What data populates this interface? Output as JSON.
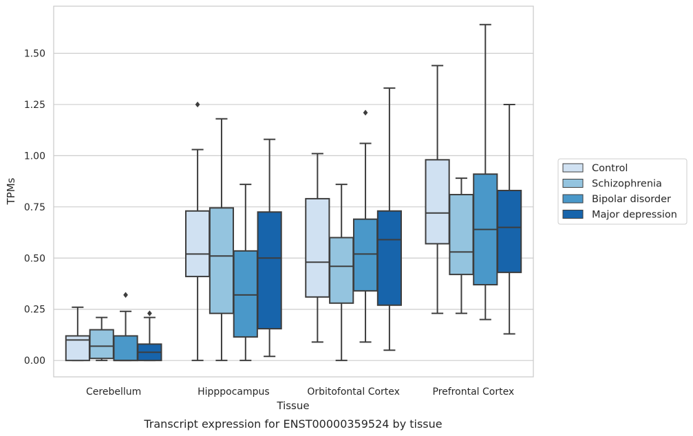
{
  "chart_data": {
    "type": "boxplot",
    "title": "",
    "xlabel": "Tissue",
    "ylabel": "TPMs",
    "caption": "Transcript expression for ENST00000359524 by tissue",
    "ylim": [
      -0.08,
      1.73
    ],
    "yticks": [
      "0.00",
      "0.25",
      "0.50",
      "0.75",
      "1.00",
      "1.25",
      "1.50"
    ],
    "categories": [
      "Cerebellum",
      "Hipppocampus",
      "Orbitofontal Cortex",
      "Prefrontal Cortex"
    ],
    "grid": "horizontal",
    "legend_position": "right",
    "series": [
      {
        "name": "Control",
        "color": "#d0e1f2",
        "boxes": [
          {
            "whislo": 0.0,
            "q1": 0.0,
            "med": 0.1,
            "q3": 0.12,
            "whishi": 0.26,
            "fliers": []
          },
          {
            "whislo": 0.0,
            "q1": 0.41,
            "med": 0.52,
            "q3": 0.73,
            "whishi": 1.03,
            "fliers": [
              1.25
            ]
          },
          {
            "whislo": 0.09,
            "q1": 0.31,
            "med": 0.48,
            "q3": 0.79,
            "whishi": 1.01,
            "fliers": []
          },
          {
            "whislo": 0.23,
            "q1": 0.57,
            "med": 0.72,
            "q3": 0.98,
            "whishi": 1.44,
            "fliers": []
          }
        ]
      },
      {
        "name": "Schizophrenia",
        "color": "#94c4df",
        "boxes": [
          {
            "whislo": 0.0,
            "q1": 0.01,
            "med": 0.07,
            "q3": 0.15,
            "whishi": 0.21,
            "fliers": []
          },
          {
            "whislo": 0.0,
            "q1": 0.23,
            "med": 0.51,
            "q3": 0.745,
            "whishi": 1.18,
            "fliers": []
          },
          {
            "whislo": 0.0,
            "q1": 0.28,
            "med": 0.46,
            "q3": 0.6,
            "whishi": 0.86,
            "fliers": []
          },
          {
            "whislo": 0.23,
            "q1": 0.42,
            "med": 0.53,
            "q3": 0.81,
            "whishi": 0.89,
            "fliers": []
          }
        ]
      },
      {
        "name": "Bipolar disorder",
        "color": "#4a98c9",
        "boxes": [
          {
            "whislo": 0.0,
            "q1": 0.0,
            "med": 0.0,
            "q3": 0.12,
            "whishi": 0.24,
            "fliers": [
              0.32
            ]
          },
          {
            "whislo": 0.0,
            "q1": 0.115,
            "med": 0.32,
            "q3": 0.535,
            "whishi": 0.86,
            "fliers": []
          },
          {
            "whislo": 0.09,
            "q1": 0.34,
            "med": 0.52,
            "q3": 0.69,
            "whishi": 1.06,
            "fliers": [
              1.21
            ]
          },
          {
            "whislo": 0.2,
            "q1": 0.37,
            "med": 0.64,
            "q3": 0.91,
            "whishi": 1.64,
            "fliers": []
          }
        ]
      },
      {
        "name": "Major depression",
        "color": "#1764ab",
        "boxes": [
          {
            "whislo": 0.0,
            "q1": 0.0,
            "med": 0.04,
            "q3": 0.08,
            "whishi": 0.21,
            "fliers": [
              0.23
            ]
          },
          {
            "whislo": 0.02,
            "q1": 0.155,
            "med": 0.5,
            "q3": 0.725,
            "whishi": 1.08,
            "fliers": []
          },
          {
            "whislo": 0.05,
            "q1": 0.27,
            "med": 0.59,
            "q3": 0.73,
            "whishi": 1.33,
            "fliers": []
          },
          {
            "whislo": 0.13,
            "q1": 0.43,
            "med": 0.65,
            "q3": 0.83,
            "whishi": 1.25,
            "fliers": []
          }
        ]
      }
    ]
  }
}
